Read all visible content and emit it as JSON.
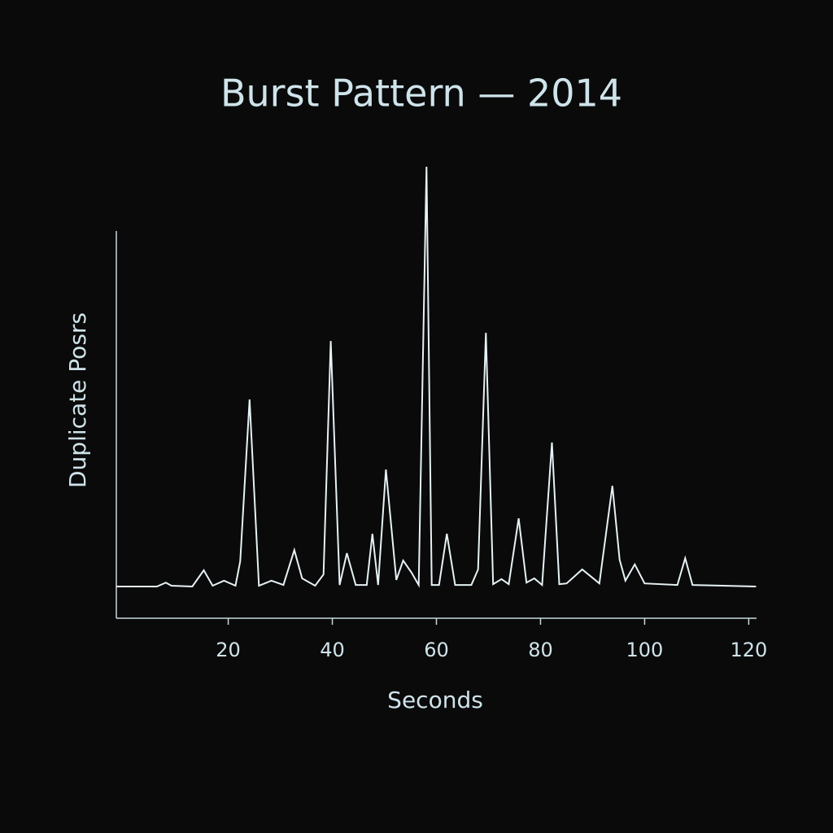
{
  "chart_data": {
    "type": "line",
    "title": "Burst Pattern — 2014",
    "xlabel": "Seconds",
    "ylabel": "Duplicate Posrs",
    "x": [
      -1.5,
      6.3,
      8.0,
      9.1,
      13.1,
      15.3,
      17.0,
      19.2,
      21.4,
      22.3,
      24.1,
      25.9,
      28.3,
      30.6,
      32.7,
      34.2,
      36.7,
      38.3,
      39.7,
      41.4,
      42.8,
      44.5,
      46.6,
      47.7,
      48.8,
      50.3,
      52.3,
      53.6,
      55.2,
      56.6,
      58.1,
      59.1,
      60.5,
      62.0,
      63.6,
      66.7,
      68.0,
      69.5,
      70.9,
      72.5,
      73.9,
      75.8,
      77.3,
      78.8,
      80.3,
      82.2,
      83.6,
      85.0,
      88.0,
      91.3,
      93.8,
      95.2,
      96.3,
      98.1,
      100.0,
      106.3,
      107.8,
      109.2,
      121.4
    ],
    "values": [
      8.2,
      8.2,
      9.2,
      8.4,
      8.2,
      12.4,
      8.4,
      9.7,
      8.4,
      14.7,
      56.5,
      8.4,
      9.7,
      8.6,
      17.6,
      10.3,
      8.4,
      11.3,
      71.6,
      8.6,
      16.8,
      8.6,
      8.6,
      21.8,
      8.6,
      38.4,
      9.9,
      14.9,
      11.8,
      8.6,
      116.6,
      8.6,
      8.6,
      21.8,
      8.6,
      8.6,
      12.6,
      73.7,
      8.8,
      10.1,
      8.8,
      25.8,
      9.2,
      10.3,
      8.6,
      45.4,
      8.8,
      9.0,
      12.6,
      9.0,
      34.2,
      15.1,
      9.7,
      13.9,
      9.0,
      8.6,
      15.5,
      8.6,
      8.2
    ],
    "color": "#e6f2f5",
    "xlim": [
      -1.5,
      121.5
    ],
    "xticks": [
      20,
      40,
      60,
      80,
      100,
      120
    ],
    "ylim": [
      0,
      100
    ]
  }
}
